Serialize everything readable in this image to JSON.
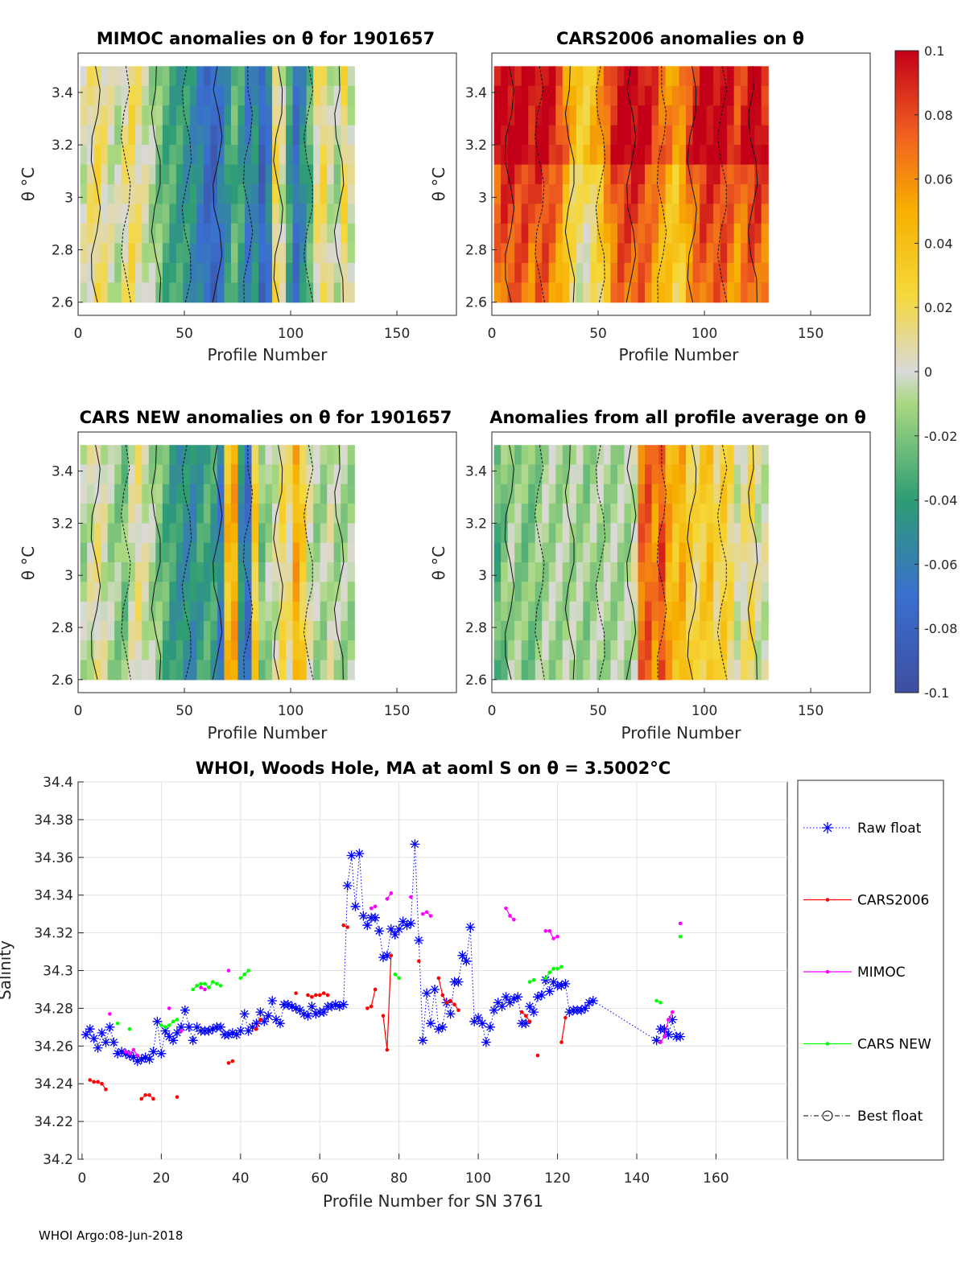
{
  "figure": {
    "footer": "WHOI Argo:08-Jun-2018",
    "colorbar": {
      "ticks": [
        "0.1",
        "0.08",
        "0.06",
        "0.04",
        "0.02",
        "0",
        "-0.02",
        "-0.04",
        "-0.06",
        "-0.08",
        "-0.1"
      ],
      "range": [
        -0.1,
        0.1
      ]
    }
  },
  "chart_data": [
    {
      "type": "heatmap",
      "title": "MIMOC anomalies on θ  for 1901657",
      "xlabel": "Profile Number",
      "ylabel": "θ °C",
      "xlim": [
        0,
        178
      ],
      "ylim": [
        2.55,
        3.55
      ],
      "xticks": [
        "0",
        "50",
        "100",
        "150"
      ],
      "yticks": [
        "2.6",
        "2.8",
        "3",
        "3.2",
        "3.4"
      ],
      "profiles": [
        1,
        130
      ],
      "theta_range": [
        2.6,
        3.5
      ],
      "profile_anomaly": [
        0.0,
        0.01,
        0.02,
        0.01,
        0.0,
        -0.005,
        0.01,
        0.02,
        0.01,
        0.0,
        -0.01,
        -0.02,
        -0.03,
        -0.035,
        -0.04,
        -0.045,
        -0.05,
        -0.06,
        -0.075,
        -0.08,
        -0.065,
        -0.045,
        -0.03,
        -0.04,
        -0.06,
        -0.05,
        -0.08,
        -0.06,
        0.02,
        0.0,
        -0.04,
        -0.07,
        -0.05,
        -0.03,
        0.01,
        0.02,
        0.0,
        -0.01,
        0.02,
        0.0
      ],
      "note": "anomaly field of float 1901657 on theta surfaces"
    },
    {
      "type": "heatmap",
      "title": "CARS2006 anomalies on θ",
      "xlabel": "Profile Number",
      "ylabel": "θ °C",
      "xlim": [
        0,
        178
      ],
      "ylim": [
        2.55,
        3.55
      ],
      "xticks": [
        "0",
        "50",
        "100",
        "150"
      ],
      "yticks": [
        "2.6",
        "2.8",
        "3",
        "3.2",
        "3.4"
      ],
      "profiles": [
        1,
        130
      ],
      "theta_range": [
        2.6,
        3.5
      ],
      "profile_anomaly": [
        0.09,
        0.1,
        0.1,
        0.1,
        0.1,
        0.09,
        0.1,
        0.1,
        0.09,
        0.08,
        0.06,
        0.04,
        0.03,
        0.03,
        0.04,
        0.05,
        0.07,
        0.09,
        0.1,
        0.1,
        0.1,
        0.1,
        0.09,
        0.08,
        0.07,
        0.06,
        0.05,
        0.06,
        0.08,
        0.09,
        0.1,
        0.1,
        0.1,
        0.1,
        0.09,
        0.08,
        0.09,
        0.1,
        0.1,
        0.09
      ]
    },
    {
      "type": "heatmap",
      "title": "CARS NEW anomalies on θ for 1901657",
      "xlabel": "Profile Number",
      "ylabel": "θ °C",
      "xlim": [
        0,
        178
      ],
      "ylim": [
        2.55,
        3.55
      ],
      "xticks": [
        "0",
        "50",
        "100",
        "150"
      ],
      "yticks": [
        "2.6",
        "2.8",
        "3",
        "3.2",
        "3.4"
      ],
      "profiles": [
        1,
        130
      ],
      "theta_range": [
        2.6,
        3.5
      ],
      "profile_anomaly": [
        -0.01,
        0.0,
        0.01,
        0.0,
        -0.01,
        -0.015,
        -0.02,
        0.0,
        0.01,
        0.0,
        -0.01,
        -0.02,
        -0.03,
        -0.04,
        -0.045,
        -0.05,
        -0.05,
        -0.04,
        -0.035,
        -0.04,
        -0.06,
        0.04,
        0.05,
        -0.05,
        -0.07,
        0.03,
        -0.02,
        -0.01,
        0.0,
        0.02,
        0.01,
        0.05,
        0.03,
        0.0,
        -0.01,
        -0.01,
        0.0,
        -0.01,
        -0.01,
        -0.01
      ]
    },
    {
      "type": "heatmap",
      "title": "Anomalies from all profile average on θ",
      "xlabel": "Profile Number",
      "ylabel": "θ °C",
      "xlim": [
        0,
        178
      ],
      "ylim": [
        2.55,
        3.55
      ],
      "xticks": [
        "0",
        "50",
        "100",
        "150"
      ],
      "yticks": [
        "2.6",
        "2.8",
        "3",
        "3.2",
        "3.4"
      ],
      "profiles": [
        1,
        130
      ],
      "theta_range": [
        2.6,
        3.5
      ],
      "profile_anomaly": [
        -0.03,
        -0.02,
        -0.01,
        -0.015,
        -0.02,
        -0.02,
        -0.015,
        -0.01,
        -0.01,
        -0.01,
        -0.01,
        -0.01,
        -0.01,
        -0.015,
        -0.01,
        -0.01,
        -0.01,
        -0.01,
        -0.01,
        -0.01,
        0.0,
        0.07,
        0.075,
        0.06,
        0.08,
        0.05,
        0.04,
        0.05,
        0.03,
        0.02,
        0.03,
        0.04,
        0.02,
        0.03,
        0.02,
        0.0,
        0.01,
        0.02,
        0.0,
        0.0
      ]
    },
    {
      "type": "line",
      "title": "WHOI, Woods Hole, MA at aoml S on θ = 3.5002°C",
      "xlabel": "Profile Number for SN 3761",
      "ylabel": "Salinity",
      "xlim": [
        -1,
        178
      ],
      "ylim": [
        34.2,
        34.4
      ],
      "xticks": [
        "0",
        "20",
        "40",
        "60",
        "80",
        "100",
        "120",
        "140",
        "160"
      ],
      "yticks": [
        "34.2",
        "34.22",
        "34.24",
        "34.26",
        "34.28",
        "34.3",
        "34.32",
        "34.34",
        "34.36",
        "34.38",
        "34.4"
      ],
      "grid": true,
      "legend_position": "outside-right",
      "series": [
        {
          "name": "Raw float",
          "color": "#0000ff",
          "marker": "asterisk",
          "x": [
            1,
            2,
            3,
            4,
            5,
            6,
            7,
            8,
            9,
            10,
            11,
            12,
            13,
            14,
            15,
            16,
            17,
            18,
            19,
            20,
            21,
            22,
            23,
            24,
            25,
            26,
            27,
            28,
            29,
            30,
            31,
            32,
            33,
            34,
            35,
            36,
            37,
            38,
            39,
            40,
            41,
            42,
            43,
            44,
            45,
            46,
            47,
            48,
            49,
            50,
            51,
            52,
            53,
            54,
            55,
            56,
            57,
            58,
            59,
            60,
            61,
            62,
            63,
            64,
            65,
            66,
            67,
            68,
            69,
            70,
            71,
            72,
            73,
            74,
            75,
            76,
            77,
            78,
            79,
            80,
            81,
            82,
            83,
            84,
            85,
            86,
            87,
            88,
            89,
            90,
            91,
            92,
            93,
            94,
            95,
            96,
            97,
            98,
            99,
            100,
            101,
            102,
            103,
            104,
            105,
            106,
            107,
            108,
            109,
            110,
            111,
            112,
            113,
            114,
            115,
            116,
            117,
            118,
            119,
            120,
            121,
            122,
            123,
            124,
            125,
            126,
            127,
            128,
            129,
            145,
            146,
            147,
            148,
            149,
            150,
            151
          ],
          "y": [
            34.266,
            34.269,
            34.264,
            34.259,
            34.267,
            34.262,
            34.27,
            34.262,
            34.256,
            34.257,
            34.256,
            34.255,
            34.254,
            34.252,
            34.253,
            34.254,
            34.253,
            34.257,
            34.273,
            34.256,
            34.268,
            34.265,
            34.263,
            34.267,
            34.27,
            34.279,
            34.27,
            34.263,
            34.27,
            34.268,
            34.268,
            34.268,
            34.269,
            34.27,
            34.27,
            34.266,
            34.266,
            34.267,
            34.266,
            34.268,
            34.277,
            34.268,
            34.27,
            34.272,
            34.278,
            34.273,
            34.276,
            34.284,
            34.274,
            34.272,
            34.282,
            34.282,
            34.281,
            34.28,
            34.279,
            34.277,
            34.276,
            34.281,
            34.277,
            34.278,
            34.278,
            34.281,
            34.281,
            34.282,
            34.281,
            34.282,
            34.345,
            34.361,
            34.334,
            34.362,
            34.329,
            34.324,
            34.328,
            34.328,
            34.321,
            34.307,
            34.308,
            34.322,
            34.319,
            34.322,
            34.326,
            34.324,
            34.325,
            34.367,
            34.316,
            34.263,
            34.288,
            34.272,
            34.29,
            34.269,
            34.27,
            34.283,
            34.277,
            34.294,
            34.294,
            34.308,
            34.305,
            34.323,
            34.273,
            34.275,
            34.272,
            34.262,
            34.27,
            34.279,
            34.283,
            34.281,
            34.286,
            34.283,
            34.285,
            34.286,
            34.272,
            34.272,
            34.281,
            34.278,
            34.286,
            34.287,
            34.295,
            34.289,
            34.294,
            34.292,
            34.292,
            34.293,
            34.278,
            34.279,
            34.279,
            34.279,
            34.28,
            34.283,
            34.284,
            34.263,
            34.269,
            34.269,
            34.266,
            34.274,
            34.265,
            34.265
          ]
        },
        {
          "name": "CARS2006",
          "color": "#ff0000",
          "marker": "dot",
          "x": [
            2,
            3,
            4,
            5,
            6,
            15,
            16,
            17,
            18,
            24,
            37,
            38,
            44,
            45,
            54,
            57,
            58,
            59,
            60,
            61,
            62,
            66,
            67,
            72,
            73,
            74,
            76,
            77,
            78,
            85,
            90,
            91,
            92,
            93,
            94,
            95,
            111,
            112,
            113,
            115,
            121,
            122
          ],
          "y": [
            34.242,
            34.241,
            34.241,
            34.24,
            34.237,
            34.232,
            34.234,
            34.234,
            34.232,
            34.233,
            34.251,
            34.252,
            34.269,
            34.274,
            34.288,
            34.287,
            34.286,
            34.287,
            34.287,
            34.288,
            34.287,
            34.324,
            34.323,
            34.28,
            34.281,
            34.29,
            34.276,
            34.258,
            34.308,
            34.305,
            34.296,
            34.287,
            34.283,
            34.284,
            34.282,
            34.279,
            34.278,
            34.276,
            34.273,
            34.255,
            34.262,
            34.275
          ]
        },
        {
          "name": "MIMOC",
          "color": "#ff00ff",
          "marker": "dot",
          "x": [
            7,
            11,
            12,
            13,
            14,
            22,
            25,
            30,
            31,
            37,
            73,
            74,
            77,
            78,
            83,
            86,
            87,
            88,
            107,
            108,
            109,
            117,
            118,
            119,
            120,
            146,
            147,
            148,
            149,
            151
          ],
          "y": [
            34.277,
            34.257,
            34.256,
            34.258,
            34.255,
            34.28,
            34.268,
            34.291,
            34.29,
            34.3,
            34.333,
            34.334,
            34.338,
            34.341,
            34.339,
            34.33,
            34.331,
            34.329,
            34.333,
            34.329,
            34.327,
            34.321,
            34.321,
            34.317,
            34.318,
            34.262,
            34.265,
            34.274,
            34.278,
            34.325
          ]
        },
        {
          "name": "CARS NEW",
          "color": "#00ff00",
          "marker": "dot",
          "x": [
            9,
            12,
            20,
            21,
            22,
            23,
            24,
            28,
            29,
            30,
            31,
            32,
            33,
            34,
            35,
            40,
            41,
            42,
            79,
            80,
            113,
            114,
            117,
            118,
            119,
            120,
            121,
            145,
            146,
            151
          ],
          "y": [
            34.272,
            34.269,
            34.271,
            34.27,
            34.271,
            34.273,
            34.274,
            34.29,
            34.292,
            34.293,
            34.293,
            34.291,
            34.294,
            34.293,
            34.292,
            34.296,
            34.298,
            34.3,
            34.298,
            34.296,
            34.294,
            34.295,
            34.296,
            34.299,
            34.301,
            34.301,
            34.302,
            34.284,
            34.283,
            34.318
          ]
        },
        {
          "name": "Best float",
          "color": "#000000",
          "marker": "circle",
          "x": [],
          "y": []
        }
      ]
    }
  ]
}
